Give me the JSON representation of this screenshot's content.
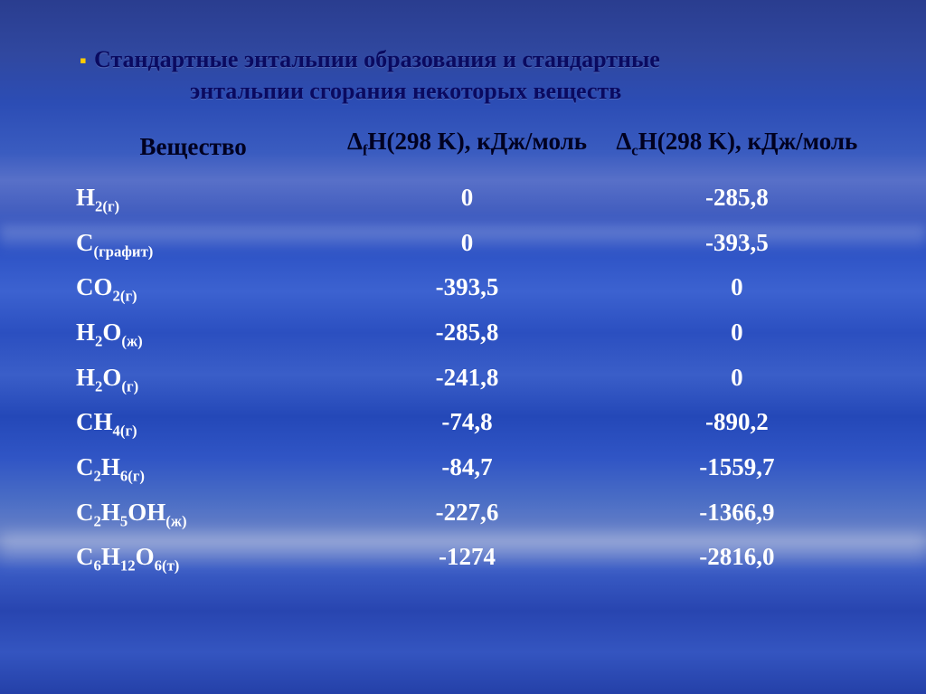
{
  "title_line1": "Стандартные энтальпии образования и стандартные",
  "title_line2": "энтальпии сгорания некоторых веществ",
  "headers": {
    "substance": "Вещество",
    "dfH_html": "Δ<sub>f</sub>H(298 K), кДж/моль",
    "dcH_html": "Δ<sub>c</sub>H(298 K), кДж/моль"
  },
  "rows": [
    {
      "formula_html": "H<sub>2(г)</sub>",
      "dfH": "0",
      "dcH": "-285,8"
    },
    {
      "formula_html": "C<sub>(графит)</sub>",
      "dfH": "0",
      "dcH": "-393,5"
    },
    {
      "formula_html": "CO<sub>2(г)</sub>",
      "dfH": "-393,5",
      "dcH": "0"
    },
    {
      "formula_html": "H<sub>2</sub>O<sub>(ж)</sub>",
      "dfH": "-285,8",
      "dcH": "0"
    },
    {
      "formula_html": "H<sub>2</sub>O<sub>(г)</sub>",
      "dfH": "-241,8",
      "dcH": "0"
    },
    {
      "formula_html": "CH<sub>4(г)</sub>",
      "dfH": "-74,8",
      "dcH": "-890,2"
    },
    {
      "formula_html": "C<sub>2</sub>H<sub>6(г)</sub>",
      "dfH": "-84,7",
      "dcH": "-1559,7"
    },
    {
      "formula_html": "C<sub>2</sub>H<sub>5</sub>OH<sub>(ж)</sub>",
      "dfH": "-227,6",
      "dcH": "-1366,9"
    },
    {
      "formula_html": "C<sub>6</sub>H<sub>12</sub>O<sub>6(т)</sub>",
      "dfH": "-1274",
      "dcH": "-2816,0"
    }
  ],
  "style": {
    "title_color": "#0a0a60",
    "bullet_color": "#ffcc00",
    "header_color": "#000020",
    "cell_color": "#ffffff",
    "title_fontsize": 26,
    "header_fontsize": 27,
    "cell_fontsize": 27
  }
}
